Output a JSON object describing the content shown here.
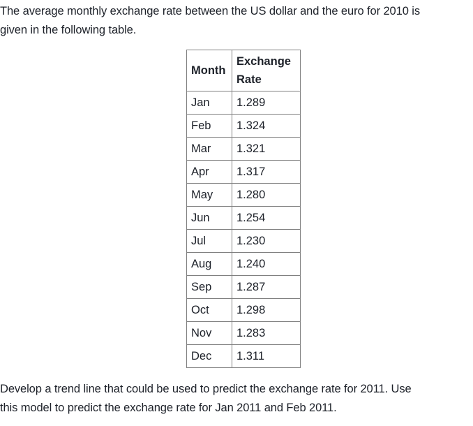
{
  "page": {
    "background": "#ffffff",
    "text_color": "#1d2129",
    "table_border_color": "#808080"
  },
  "intro": {
    "lines": [
      "The average monthly exchange rate between the US dollar and the euro for 2010 is",
      "given in the following table."
    ]
  },
  "table": {
    "headers": [
      "Month",
      "Exchange Rate"
    ],
    "rows": [
      {
        "month": "Jan",
        "rate": "1.289"
      },
      {
        "month": "Feb",
        "rate": "1.324"
      },
      {
        "month": "Mar",
        "rate": "1.321"
      },
      {
        "month": "Apr",
        "rate": "1.317"
      },
      {
        "month": "May",
        "rate": "1.280"
      },
      {
        "month": "Jun",
        "rate": "1.254"
      },
      {
        "month": "Jul",
        "rate": "1.230"
      },
      {
        "month": "Aug",
        "rate": "1.240"
      },
      {
        "month": "Sep",
        "rate": "1.287"
      },
      {
        "month": "Oct",
        "rate": "1.298"
      },
      {
        "month": "Nov",
        "rate": "1.283"
      },
      {
        "month": "Dec",
        "rate": "1.311"
      }
    ]
  },
  "question": {
    "lines": [
      "Develop a trend line that could be used to predict the exchange rate for 2011. Use",
      "this model to predict the exchange rate for Jan 2011 and Feb 2011."
    ]
  }
}
